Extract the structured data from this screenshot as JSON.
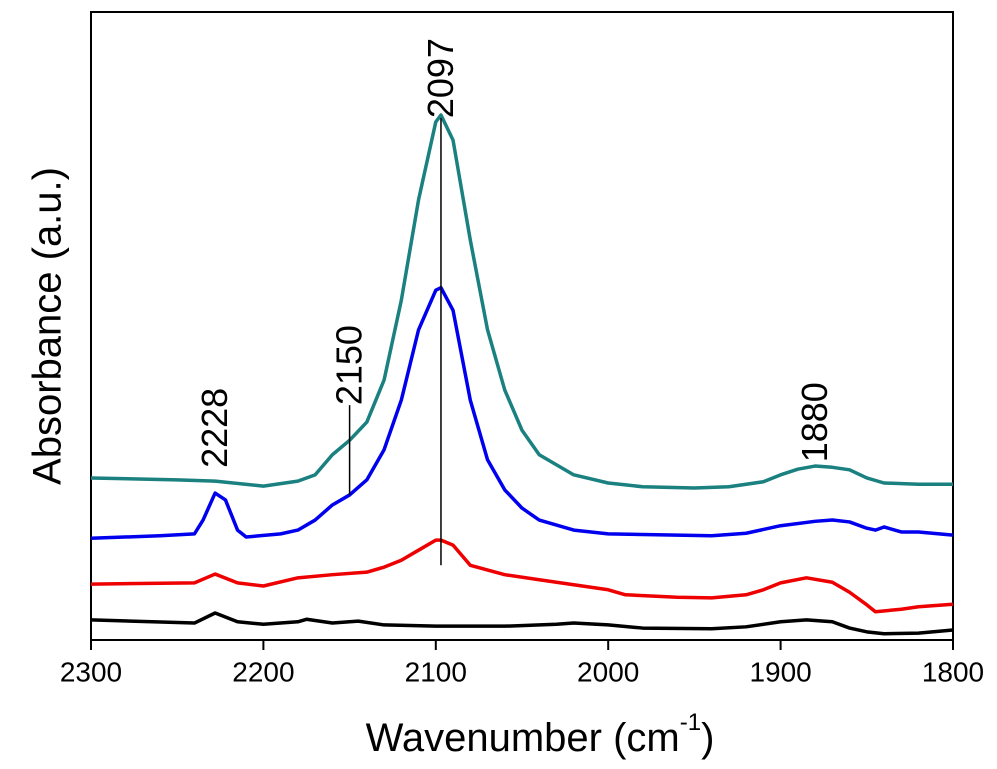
{
  "chart_data": {
    "type": "line",
    "ylabel": "Absorbance (a.u.)",
    "xlabel": {
      "text": "Wavenumber (cm",
      "sup": "-1",
      "end": ")"
    },
    "xlim": [
      2300,
      1800
    ],
    "xticks": [
      2300,
      2200,
      2100,
      2000,
      1900,
      1800
    ],
    "ylim": [
      0,
      100
    ],
    "series": [
      {
        "color": "#1a8080",
        "x": [
          2300,
          2250,
          2228,
          2200,
          2180,
          2170,
          2160,
          2150,
          2140,
          2130,
          2120,
          2110,
          2100,
          2097,
          2090,
          2080,
          2070,
          2060,
          2050,
          2040,
          2020,
          2000,
          1980,
          1950,
          1930,
          1910,
          1900,
          1890,
          1880,
          1870,
          1860,
          1850,
          1840,
          1820,
          1800
        ],
        "values": [
          25.8,
          25.5,
          25.3,
          24.5,
          25.3,
          26.3,
          29.5,
          31.8,
          34.7,
          41.4,
          54.1,
          70.1,
          82.5,
          83.6,
          79.6,
          63.7,
          49.4,
          39.8,
          33.4,
          29.5,
          26.3,
          25.0,
          24.4,
          24.2,
          24.4,
          25.2,
          26.3,
          27.2,
          27.7,
          27.5,
          27.1,
          25.8,
          25.0,
          24.8,
          24.8
        ]
      },
      {
        "color": "#0000ee",
        "x": [
          2300,
          2260,
          2240,
          2235,
          2228,
          2222,
          2215,
          2210,
          2190,
          2180,
          2170,
          2160,
          2150,
          2140,
          2130,
          2120,
          2110,
          2100,
          2097,
          2090,
          2080,
          2070,
          2060,
          2050,
          2040,
          2020,
          2000,
          1960,
          1940,
          1920,
          1900,
          1880,
          1870,
          1860,
          1850,
          1845,
          1840,
          1830,
          1820,
          1800
        ],
        "values": [
          16.2,
          16.6,
          16.9,
          19.1,
          23.4,
          22.3,
          17.5,
          16.4,
          16.9,
          17.5,
          19.1,
          21.5,
          23.1,
          25.5,
          30.3,
          38.2,
          49.4,
          55.7,
          56.1,
          52.5,
          38.2,
          28.7,
          23.9,
          21.0,
          19.1,
          17.5,
          16.9,
          16.7,
          16.6,
          17.0,
          18.2,
          18.9,
          19.1,
          18.8,
          17.8,
          17.5,
          18.0,
          17.2,
          17.2,
          16.7
        ]
      },
      {
        "color": "#ee0000",
        "x": [
          2300,
          2240,
          2228,
          2215,
          2200,
          2180,
          2160,
          2140,
          2130,
          2120,
          2110,
          2100,
          2097,
          2090,
          2080,
          2060,
          2040,
          2020,
          2000,
          1990,
          1960,
          1940,
          1920,
          1910,
          1900,
          1885,
          1870,
          1860,
          1850,
          1845,
          1830,
          1820,
          1800
        ],
        "values": [
          8.9,
          9.1,
          10.5,
          9.1,
          8.6,
          9.9,
          10.4,
          10.8,
          11.6,
          12.7,
          14.3,
          15.9,
          15.9,
          15.1,
          11.9,
          10.4,
          9.6,
          8.8,
          8.0,
          7.2,
          6.8,
          6.7,
          7.2,
          8.0,
          9.1,
          9.9,
          9.2,
          7.6,
          5.6,
          4.5,
          4.9,
          5.3,
          5.7
        ]
      },
      {
        "color": "#000000",
        "x": [
          2300,
          2240,
          2228,
          2215,
          2200,
          2180,
          2175,
          2160,
          2145,
          2130,
          2100,
          2060,
          2030,
          2020,
          2000,
          1980,
          1940,
          1920,
          1900,
          1885,
          1870,
          1860,
          1850,
          1840,
          1820,
          1800
        ],
        "values": [
          3.2,
          2.7,
          4.3,
          2.9,
          2.5,
          2.9,
          3.3,
          2.7,
          3.0,
          2.4,
          2.2,
          2.2,
          2.5,
          2.7,
          2.4,
          1.9,
          1.8,
          2.1,
          2.9,
          3.2,
          2.9,
          1.9,
          1.3,
          1.0,
          1.1,
          1.6
        ]
      }
    ],
    "annotations": [
      {
        "text": "2228",
        "x": 2228,
        "y": 27.4
      },
      {
        "text": "2150",
        "x": 2150,
        "y": 37.4,
        "line": [
          37.4,
          23.1
        ]
      },
      {
        "text": "2097",
        "x": 2097,
        "y": 83.1,
        "line": [
          83.1,
          11.9
        ]
      },
      {
        "text": "1880",
        "x": 1880,
        "y": 28.3
      }
    ]
  }
}
